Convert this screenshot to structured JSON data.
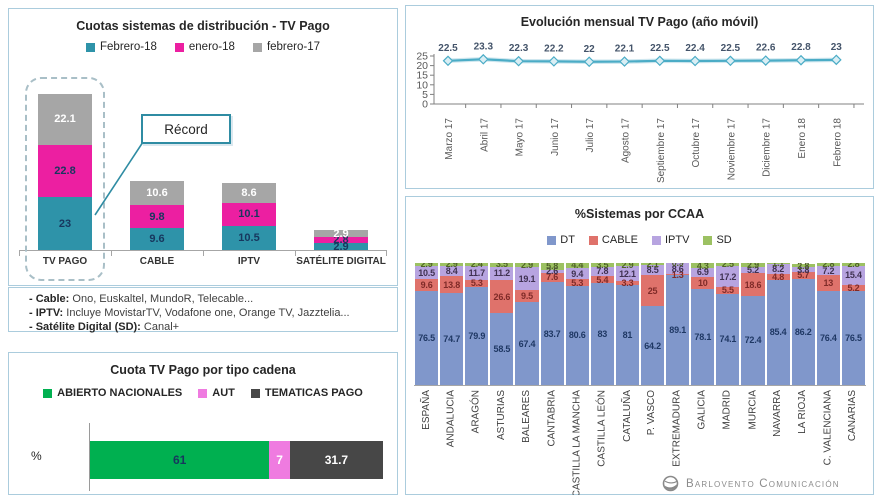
{
  "colors": {
    "panel_border": "#abccdd",
    "callout_border": "#2f8ca3",
    "line_color": "#4bacc6",
    "axis_gray": "#a6a6a6"
  },
  "logo": {
    "text": "Barlovento Comunicación"
  },
  "chart_data": [
    {
      "id": "distribucion",
      "type": "bar",
      "subtype": "stacked-column",
      "title": "Cuotas sistemas de distribución - TV Pago",
      "categories": [
        "TV PAGO",
        "CABLE",
        "IPTV",
        "SATÉLITE DIGITAL"
      ],
      "series": [
        {
          "name": "Febrero-18",
          "color": "#2e93a9",
          "label_color": "#17375e",
          "values": [
            23,
            9.6,
            10.5,
            2.9
          ]
        },
        {
          "name": "enero-18",
          "color": "#ec1fa1",
          "label_color": "#17375e",
          "values": [
            22.8,
            9.8,
            10.1,
            2.8
          ]
        },
        {
          "name": "febrero-17",
          "color": "#a6a6a6",
          "label_color": "#ffffff",
          "values": [
            22.1,
            10.6,
            8.6,
            2.9
          ]
        }
      ],
      "annotation": "Récord",
      "legend_position": "top",
      "grid": false,
      "footnotes": [
        {
          "prefix": "- Cable:",
          "text": " Ono, Euskaltel, MundoR, Telecable..."
        },
        {
          "prefix": "- IPTV:",
          "text": " Incluye MovistarTV, Vodafone one, Orange TV, Jazztelia..."
        },
        {
          "prefix": "- Satélite Digital (SD):",
          "text": " Canal+"
        }
      ]
    },
    {
      "id": "evolucion",
      "type": "line",
      "title": "Evolución mensual TV Pago (año móvil)",
      "x": [
        "Marzo 17",
        "Abril 17",
        "Mayo 17",
        "Junio 17",
        "Julio 17",
        "Agosto 17",
        "Septiembre 17",
        "Octubre 17",
        "Noviembre 17",
        "Diciembre 17",
        "Enero 18",
        "Febrero 18"
      ],
      "values": [
        22.5,
        23.3,
        22.3,
        22.2,
        22,
        22.1,
        22.5,
        22.4,
        22.5,
        22.6,
        22.8,
        23
      ],
      "ylim": [
        0,
        25
      ],
      "yticks": [
        0,
        5,
        10,
        15,
        20,
        25
      ],
      "line_color": "#4bacc6",
      "marker": "diamond",
      "grid": false,
      "legend_position": "none"
    },
    {
      "id": "tipo_cadena",
      "type": "bar",
      "subtype": "stacked-horizontal",
      "title": "Cuota TV Pago por tipo cadena",
      "axis_label": "%",
      "grid": false,
      "legend_position": "top",
      "segments": [
        {
          "name": "ABIERTO NACIONALES",
          "value": 61,
          "color": "#00b050",
          "label_color": "#17375e"
        },
        {
          "name": "AUT",
          "value": 7,
          "color": "#ef7be0",
          "label_color": "#ffffff"
        },
        {
          "name": "TEMATICAS PAGO",
          "value": 31.7,
          "color": "#474747",
          "label_color": "#ffffff"
        }
      ]
    },
    {
      "id": "ccaa",
      "type": "bar",
      "subtype": "stacked-column-100",
      "title": "%Sistemas por CCAA",
      "grid": false,
      "legend_position": "top",
      "categories": [
        "ESPAÑA",
        "ANDALUCIA",
        "ARAGÓN",
        "ASTURIAS",
        "BALEARES",
        "CANTABRIA",
        "CASTILLA LA MANCHA",
        "CASTILLA LEÓN",
        "CATALUÑA",
        "P. VASCO",
        "EXTREMADURA",
        "GALICIA",
        "MADRID",
        "MURCIA",
        "NAVARRA",
        "LA RIOJA",
        "C. VALENCIANA",
        "CANARIAS"
      ],
      "series": [
        {
          "name": "DT",
          "color": "#8097cb",
          "label_color": "#1f3864",
          "values": [
            76.5,
            74.7,
            79.9,
            58.5,
            67.4,
            83.7,
            80.6,
            83,
            81,
            64.2,
            89.1,
            78.1,
            74.1,
            72.4,
            85.4,
            86.2,
            76.4,
            76.5
          ]
        },
        {
          "name": "CABLE",
          "color": "#df726b",
          "label_color": "#7f2b28",
          "values": [
            9.6,
            13.8,
            5.3,
            26.6,
            9.5,
            7.6,
            5.3,
            5.4,
            3.3,
            25,
            1.3,
            10,
            5.5,
            18.6,
            4.8,
            5.7,
            13,
            5.2
          ]
        },
        {
          "name": "IPTV",
          "color": "#b7a4e0",
          "label_color": "#3f3151",
          "values": [
            10.5,
            8.4,
            11.7,
            11.2,
            19.1,
            2.6,
            9.4,
            7.8,
            12.1,
            8.5,
            8.6,
            6.9,
            17.2,
            5.2,
            8.2,
            3.8,
            7.2,
            15.4
          ]
        },
        {
          "name": "SD",
          "color": "#9cc162",
          "label_color": "#4f6228",
          "values": [
            2.9,
            2.9,
            2.4,
            3.5,
            2.9,
            5.8,
            4.4,
            3.5,
            2.9,
            2.1,
            0.9,
            4.3,
            2.5,
            2.9,
            1.1,
            2.8,
            2.8,
            2.8
          ]
        }
      ]
    }
  ]
}
